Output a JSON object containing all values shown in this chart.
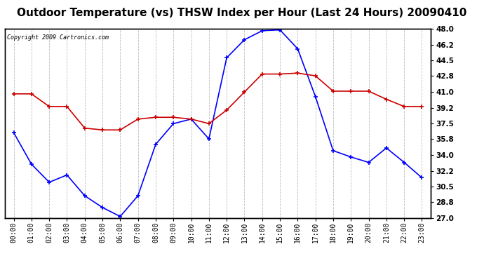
{
  "title": "Outdoor Temperature (vs) THSW Index per Hour (Last 24 Hours) 20090410",
  "copyright": "Copyright 2009 Cartronics.com",
  "hours": [
    "00:00",
    "01:00",
    "02:00",
    "03:00",
    "04:00",
    "05:00",
    "06:00",
    "07:00",
    "08:00",
    "09:00",
    "10:00",
    "11:00",
    "12:00",
    "13:00",
    "14:00",
    "15:00",
    "16:00",
    "17:00",
    "18:00",
    "19:00",
    "20:00",
    "21:00",
    "22:00",
    "23:00"
  ],
  "temp": [
    36.5,
    33.0,
    31.0,
    31.8,
    29.5,
    28.2,
    27.2,
    29.5,
    35.2,
    37.5,
    38.0,
    35.8,
    44.8,
    46.8,
    47.8,
    47.9,
    45.8,
    40.5,
    34.5,
    33.8,
    33.2,
    34.8,
    33.2,
    31.5
  ],
  "thsw": [
    40.8,
    40.8,
    39.4,
    39.4,
    37.0,
    36.8,
    36.8,
    38.0,
    38.2,
    38.2,
    38.0,
    37.5,
    39.0,
    41.0,
    43.0,
    43.0,
    43.1,
    42.8,
    41.1,
    41.1,
    41.1,
    40.2,
    39.4,
    39.4
  ],
  "temp_color": "#0000ff",
  "thsw_color": "#cc0000",
  "ylim": [
    27.0,
    48.0
  ],
  "yticks_right": [
    27.0,
    28.8,
    30.5,
    32.2,
    34.0,
    35.8,
    37.5,
    39.2,
    41.0,
    42.8,
    44.5,
    46.2,
    48.0
  ],
  "bg_color": "#ffffff",
  "grid_color": "#bbbbbb",
  "title_fontsize": 11,
  "copyright_fontsize": 6,
  "marker": "+",
  "marker_size": 4,
  "line_width": 1.2
}
